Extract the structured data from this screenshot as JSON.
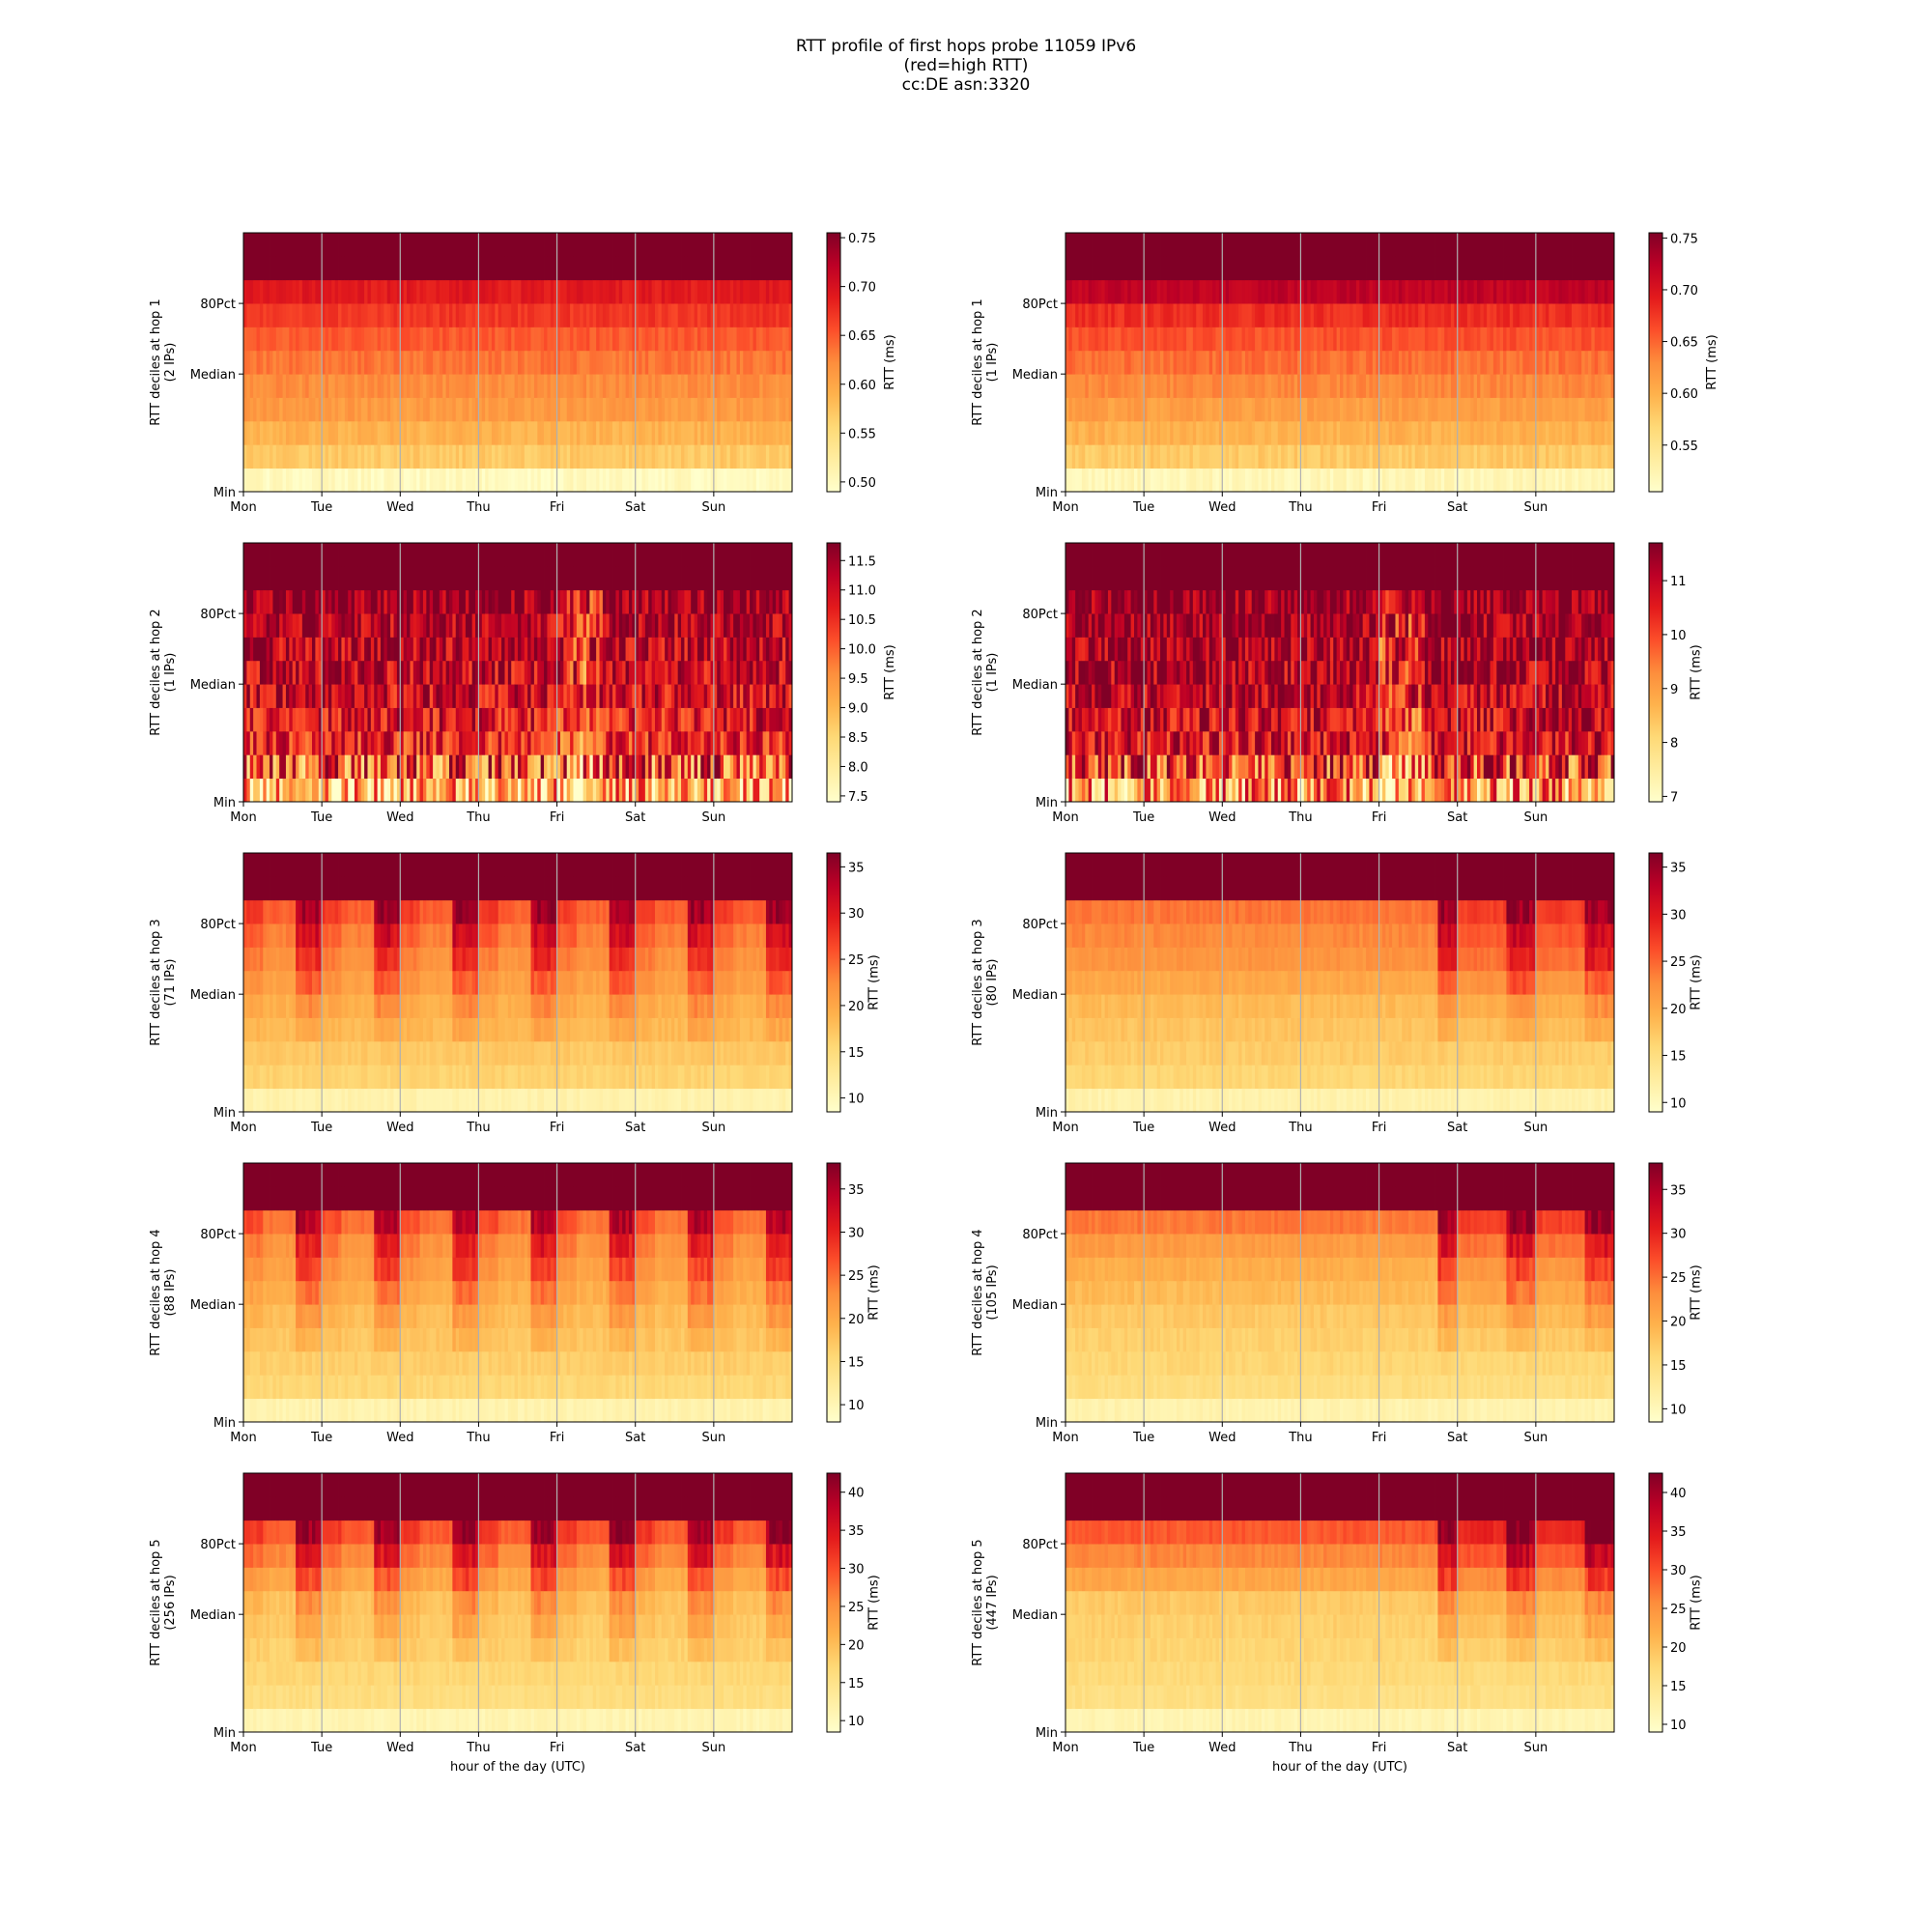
{
  "title_lines": [
    "RTT profile of first hops probe 11059 IPv6",
    "(red=high RTT)",
    "cc:DE asn:3320"
  ],
  "chart_data": [
    {
      "type": "heatmap",
      "hop": 1,
      "column": "left",
      "ylabel": "RTT deciles at hop 1",
      "ylabel2": "(2 IPs)",
      "xlabel": "",
      "cbar_label": "RTT (ms)",
      "vmin": 0.49,
      "vmax": 0.755,
      "cbar_ticks": [
        "0.50",
        "0.55",
        "0.60",
        "0.65",
        "0.70",
        "0.75"
      ],
      "pattern": "steady",
      "levels": [
        0.5,
        0.57,
        0.59,
        0.61,
        0.62,
        0.635,
        0.65,
        0.67,
        0.69,
        0.76
      ]
    },
    {
      "type": "heatmap",
      "hop": 1,
      "column": "right",
      "ylabel": "RTT deciles at hop 1",
      "ylabel2": "(1 IPs)",
      "xlabel": "",
      "cbar_label": "RTT (ms)",
      "vmin": 0.505,
      "vmax": 0.755,
      "cbar_ticks": [
        "0.55",
        "0.60",
        "0.65",
        "0.70",
        "0.75"
      ],
      "pattern": "steady",
      "levels": [
        0.52,
        0.58,
        0.6,
        0.615,
        0.63,
        0.645,
        0.66,
        0.68,
        0.72,
        0.76
      ]
    },
    {
      "type": "heatmap",
      "hop": 2,
      "column": "left",
      "ylabel": "RTT deciles at hop 2",
      "ylabel2": "(1 IPs)",
      "xlabel": "",
      "cbar_label": "RTT (ms)",
      "vmin": 7.4,
      "vmax": 11.8,
      "cbar_ticks": [
        "7.5",
        "8.0",
        "8.5",
        "9.0",
        "9.5",
        "10.0",
        "10.5",
        "11.0",
        "11.5"
      ],
      "pattern": "noisy",
      "levels": [
        9.1,
        10.3,
        10.7,
        10.9,
        11.1,
        11.2,
        11.35,
        11.5,
        11.7,
        11.9
      ]
    },
    {
      "type": "heatmap",
      "hop": 2,
      "column": "right",
      "ylabel": "RTT deciles at hop 2",
      "ylabel2": "(1 IPs)",
      "xlabel": "",
      "cbar_label": "RTT (ms)",
      "vmin": 6.9,
      "vmax": 11.7,
      "cbar_ticks": [
        "7",
        "8",
        "9",
        "10",
        "11"
      ],
      "pattern": "noisy",
      "levels": [
        9.2,
        10.4,
        10.8,
        11.0,
        11.15,
        11.3,
        11.4,
        11.55,
        11.7,
        11.9
      ]
    },
    {
      "type": "heatmap",
      "hop": 3,
      "column": "left",
      "ylabel": "RTT deciles at hop 3",
      "ylabel2": "(71 IPs)",
      "xlabel": "",
      "cbar_label": "RTT (ms)",
      "vmin": 8.5,
      "vmax": 36.5,
      "cbar_ticks": [
        "10",
        "15",
        "20",
        "25",
        "30",
        "35"
      ],
      "pattern": "diurnal",
      "levels": [
        11.0,
        16.0,
        17.0,
        18.5,
        19.5,
        21.0,
        22.5,
        24.0,
        26.0,
        37.0
      ]
    },
    {
      "type": "heatmap",
      "hop": 3,
      "column": "right",
      "ylabel": "RTT deciles at hop 3",
      "ylabel2": "(80 IPs)",
      "xlabel": "",
      "cbar_label": "RTT (ms)",
      "vmin": 9.0,
      "vmax": 36.5,
      "cbar_ticks": [
        "10",
        "15",
        "20",
        "25",
        "30",
        "35"
      ],
      "pattern": "weekend",
      "levels": [
        11.5,
        16.0,
        17.0,
        18.0,
        19.0,
        21.0,
        23.0,
        24.0,
        25.5,
        37.0
      ]
    },
    {
      "type": "heatmap",
      "hop": 4,
      "column": "left",
      "ylabel": "RTT deciles at hop 4",
      "ylabel2": "(88 IPs)",
      "xlabel": "",
      "cbar_label": "RTT (ms)",
      "vmin": 8.0,
      "vmax": 38.0,
      "cbar_ticks": [
        "10",
        "15",
        "20",
        "25",
        "30",
        "35"
      ],
      "pattern": "diurnal",
      "levels": [
        10.5,
        15.5,
        16.5,
        17.5,
        18.5,
        20.0,
        21.5,
        23.0,
        25.5,
        38.0
      ]
    },
    {
      "type": "heatmap",
      "hop": 4,
      "column": "right",
      "ylabel": "RTT deciles at hop 4",
      "ylabel2": "(105 IPs)",
      "xlabel": "",
      "cbar_label": "RTT (ms)",
      "vmin": 8.5,
      "vmax": 38.0,
      "cbar_ticks": [
        "10",
        "15",
        "20",
        "25",
        "30",
        "35"
      ],
      "pattern": "weekend",
      "levels": [
        11.0,
        15.0,
        16.0,
        17.0,
        18.0,
        19.5,
        21.0,
        23.0,
        26.0,
        38.0
      ]
    },
    {
      "type": "heatmap",
      "hop": 5,
      "column": "left",
      "ylabel": "RTT deciles at hop 5",
      "ylabel2": "(256 IPs)",
      "xlabel": "hour of the day (UTC)",
      "cbar_label": "RTT (ms)",
      "vmin": 8.5,
      "vmax": 42.5,
      "cbar_ticks": [
        "10",
        "15",
        "20",
        "25",
        "30",
        "35",
        "40"
      ],
      "pattern": "diurnal",
      "levels": [
        11.0,
        16.0,
        17.0,
        18.0,
        19.0,
        20.0,
        23.0,
        26.5,
        30.0,
        43.0
      ]
    },
    {
      "type": "heatmap",
      "hop": 5,
      "column": "right",
      "ylabel": "RTT deciles at hop 5",
      "ylabel2": "(447 IPs)",
      "xlabel": "hour of the day (UTC)",
      "cbar_label": "RTT (ms)",
      "vmin": 9.0,
      "vmax": 42.5,
      "cbar_ticks": [
        "10",
        "15",
        "20",
        "25",
        "30",
        "35",
        "40"
      ],
      "pattern": "weekend",
      "levels": [
        11.5,
        16.0,
        17.0,
        18.0,
        19.0,
        20.0,
        24.0,
        27.5,
        31.0,
        43.0
      ]
    }
  ],
  "x_ticks": [
    "Mon",
    "Tue",
    "Wed",
    "Thu",
    "Fri",
    "Sat",
    "Sun"
  ],
  "y_ticks": [
    "Min",
    "Median",
    "80Pct"
  ],
  "colormap": [
    "#ffffcc",
    "#ffeda0",
    "#fed976",
    "#feb24c",
    "#fd8d3c",
    "#fc4e2a",
    "#e31a1c",
    "#bd0026",
    "#800026"
  ]
}
